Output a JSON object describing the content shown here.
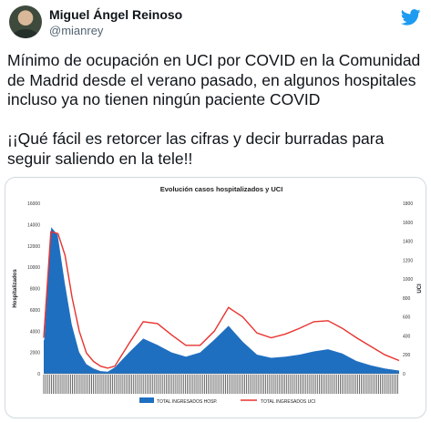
{
  "author": {
    "name": "Miguel Ángel Reinoso",
    "handle": "@mianrey"
  },
  "tweet": {
    "lines": [
      "Mínimo de ocupación en UCI por COVID en la Comunidad",
      "de Madrid desde el verano pasado, en algunos hospitales",
      "incluso ya no tienen ningún paciente COVID",
      "",
      "¡¡Qué fácil es retorcer las cifras y decir burradas para",
      "seguir saliendo en la tele!!"
    ]
  },
  "icons": {
    "logo": "twitter-bird-icon",
    "avatar": "avatar"
  },
  "colors": {
    "area": "#1f6fc0",
    "line": "#e8332f",
    "bird": "#1d9bf0"
  },
  "chart_data": {
    "type": "area",
    "title": "Evolución casos hospitalizados y UCI",
    "ylabel": "Hospitalizados",
    "y2label": "UCI",
    "ylim": [
      0,
      16000
    ],
    "y2lim": [
      0,
      1800
    ],
    "yticks": [
      "0",
      "2000",
      "4000",
      "6000",
      "8000",
      "10000",
      "12000",
      "14000",
      "16000"
    ],
    "y2ticks": [
      "0",
      "200",
      "400",
      "600",
      "800",
      "1000",
      "1200",
      "1400",
      "1600",
      "1800"
    ],
    "x": [
      0,
      2,
      4,
      6,
      8,
      10,
      12,
      14,
      16,
      18,
      20,
      24,
      28,
      32,
      36,
      40,
      44,
      48,
      52,
      56,
      60,
      64,
      68,
      72,
      76,
      80,
      84,
      88,
      92,
      96,
      100
    ],
    "series": [
      {
        "name": "TOTAL INGRESADOS HOSP.",
        "kind": "area",
        "axis": "left",
        "values": [
          3000,
          13800,
          13000,
          8500,
          4500,
          2000,
          900,
          500,
          250,
          200,
          600,
          2000,
          3300,
          2700,
          2000,
          1600,
          2000,
          3200,
          4500,
          3000,
          1800,
          1500,
          1600,
          1800,
          2100,
          2300,
          1900,
          1200,
          800,
          500,
          300
        ]
      },
      {
        "name": "TOTAL INGRESADOS UCI",
        "kind": "line",
        "axis": "right",
        "values": [
          380,
          1500,
          1480,
          1250,
          800,
          450,
          220,
          130,
          80,
          60,
          80,
          320,
          550,
          530,
          410,
          300,
          300,
          450,
          700,
          600,
          430,
          380,
          420,
          480,
          550,
          560,
          480,
          380,
          290,
          200,
          140
        ]
      }
    ],
    "legend": "bottom"
  }
}
